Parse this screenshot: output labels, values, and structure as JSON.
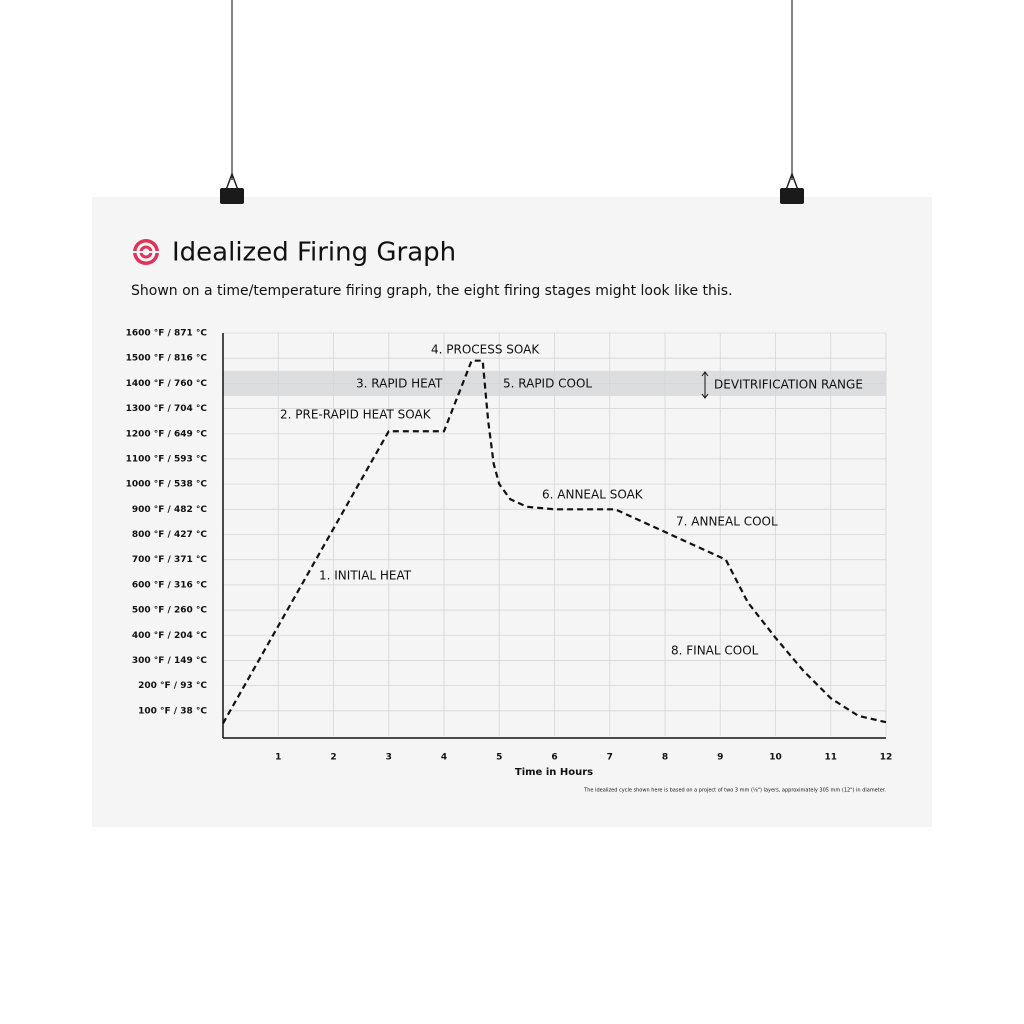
{
  "chart_data": {
    "type": "line",
    "title": "Idealized Firing Graph",
    "subtitle": "Shown on a time/temperature firing graph, the eight firing stages might look like this.",
    "x_label": "Time in Hours",
    "footnote": "The idealized cycle shown here is based on a project of two 3 mm (⅛\") layers, approximately 305 mm (12\") in diameter.",
    "xlim": [
      0,
      12
    ],
    "xticks": [
      1,
      2,
      3,
      4,
      5,
      6,
      7,
      8,
      9,
      10,
      11,
      12
    ],
    "ylim": [
      0,
      1600
    ],
    "yticks": [
      {
        "value": 100,
        "label": "100 °F / 38 °C"
      },
      {
        "value": 200,
        "label": "200 °F / 93 °C"
      },
      {
        "value": 300,
        "label": "300 °F / 149 °C"
      },
      {
        "value": 400,
        "label": "400 °F / 204 °C"
      },
      {
        "value": 500,
        "label": "500 °F / 260 °C"
      },
      {
        "value": 600,
        "label": "600 °F / 316 °C"
      },
      {
        "value": 700,
        "label": "700 °F / 371 °C"
      },
      {
        "value": 800,
        "label": "800 °F / 427 °C"
      },
      {
        "value": 900,
        "label": "900 °F / 482 °C"
      },
      {
        "value": 1000,
        "label": "1000 °F / 538 °C"
      },
      {
        "value": 1100,
        "label": "1100 °F / 593 °C"
      },
      {
        "value": 1200,
        "label": "1200 °F / 649 °C"
      },
      {
        "value": 1300,
        "label": "1300 °F / 704 °C"
      },
      {
        "value": 1400,
        "label": "1400 °F / 760 °C"
      },
      {
        "value": 1500,
        "label": "1500 °F / 816 °C"
      },
      {
        "value": 1600,
        "label": "1600 °F / 871 °C"
      }
    ],
    "grid": true,
    "band": {
      "label": "DEVITRIFICATION RANGE",
      "range": [
        1350,
        1450
      ],
      "color": "#dcdddf"
    },
    "x": [
      0,
      3,
      4,
      4.5,
      4.7,
      4.8,
      4.9,
      5,
      5.2,
      5.5,
      6,
      7.1,
      9.1,
      9.5,
      10,
      10.5,
      11,
      11.5,
      12
    ],
    "series": [
      {
        "color": "#111111",
        "values": [
          50,
          1210,
          1210,
          1490,
          1490,
          1250,
          1080,
          1000,
          940,
          910,
          900,
          900,
          700,
          530,
          390,
          260,
          150,
          80,
          55
        ]
      }
    ],
    "annotations": [
      "1. INITIAL HEAT",
      "2. PRE-RAPID HEAT SOAK",
      "3. RAPID HEAT",
      "4. PROCESS SOAK",
      "5. RAPID COOL",
      "6. ANNEAL SOAK",
      "7. ANNEAL COOL",
      "8. FINAL COOL"
    ]
  }
}
